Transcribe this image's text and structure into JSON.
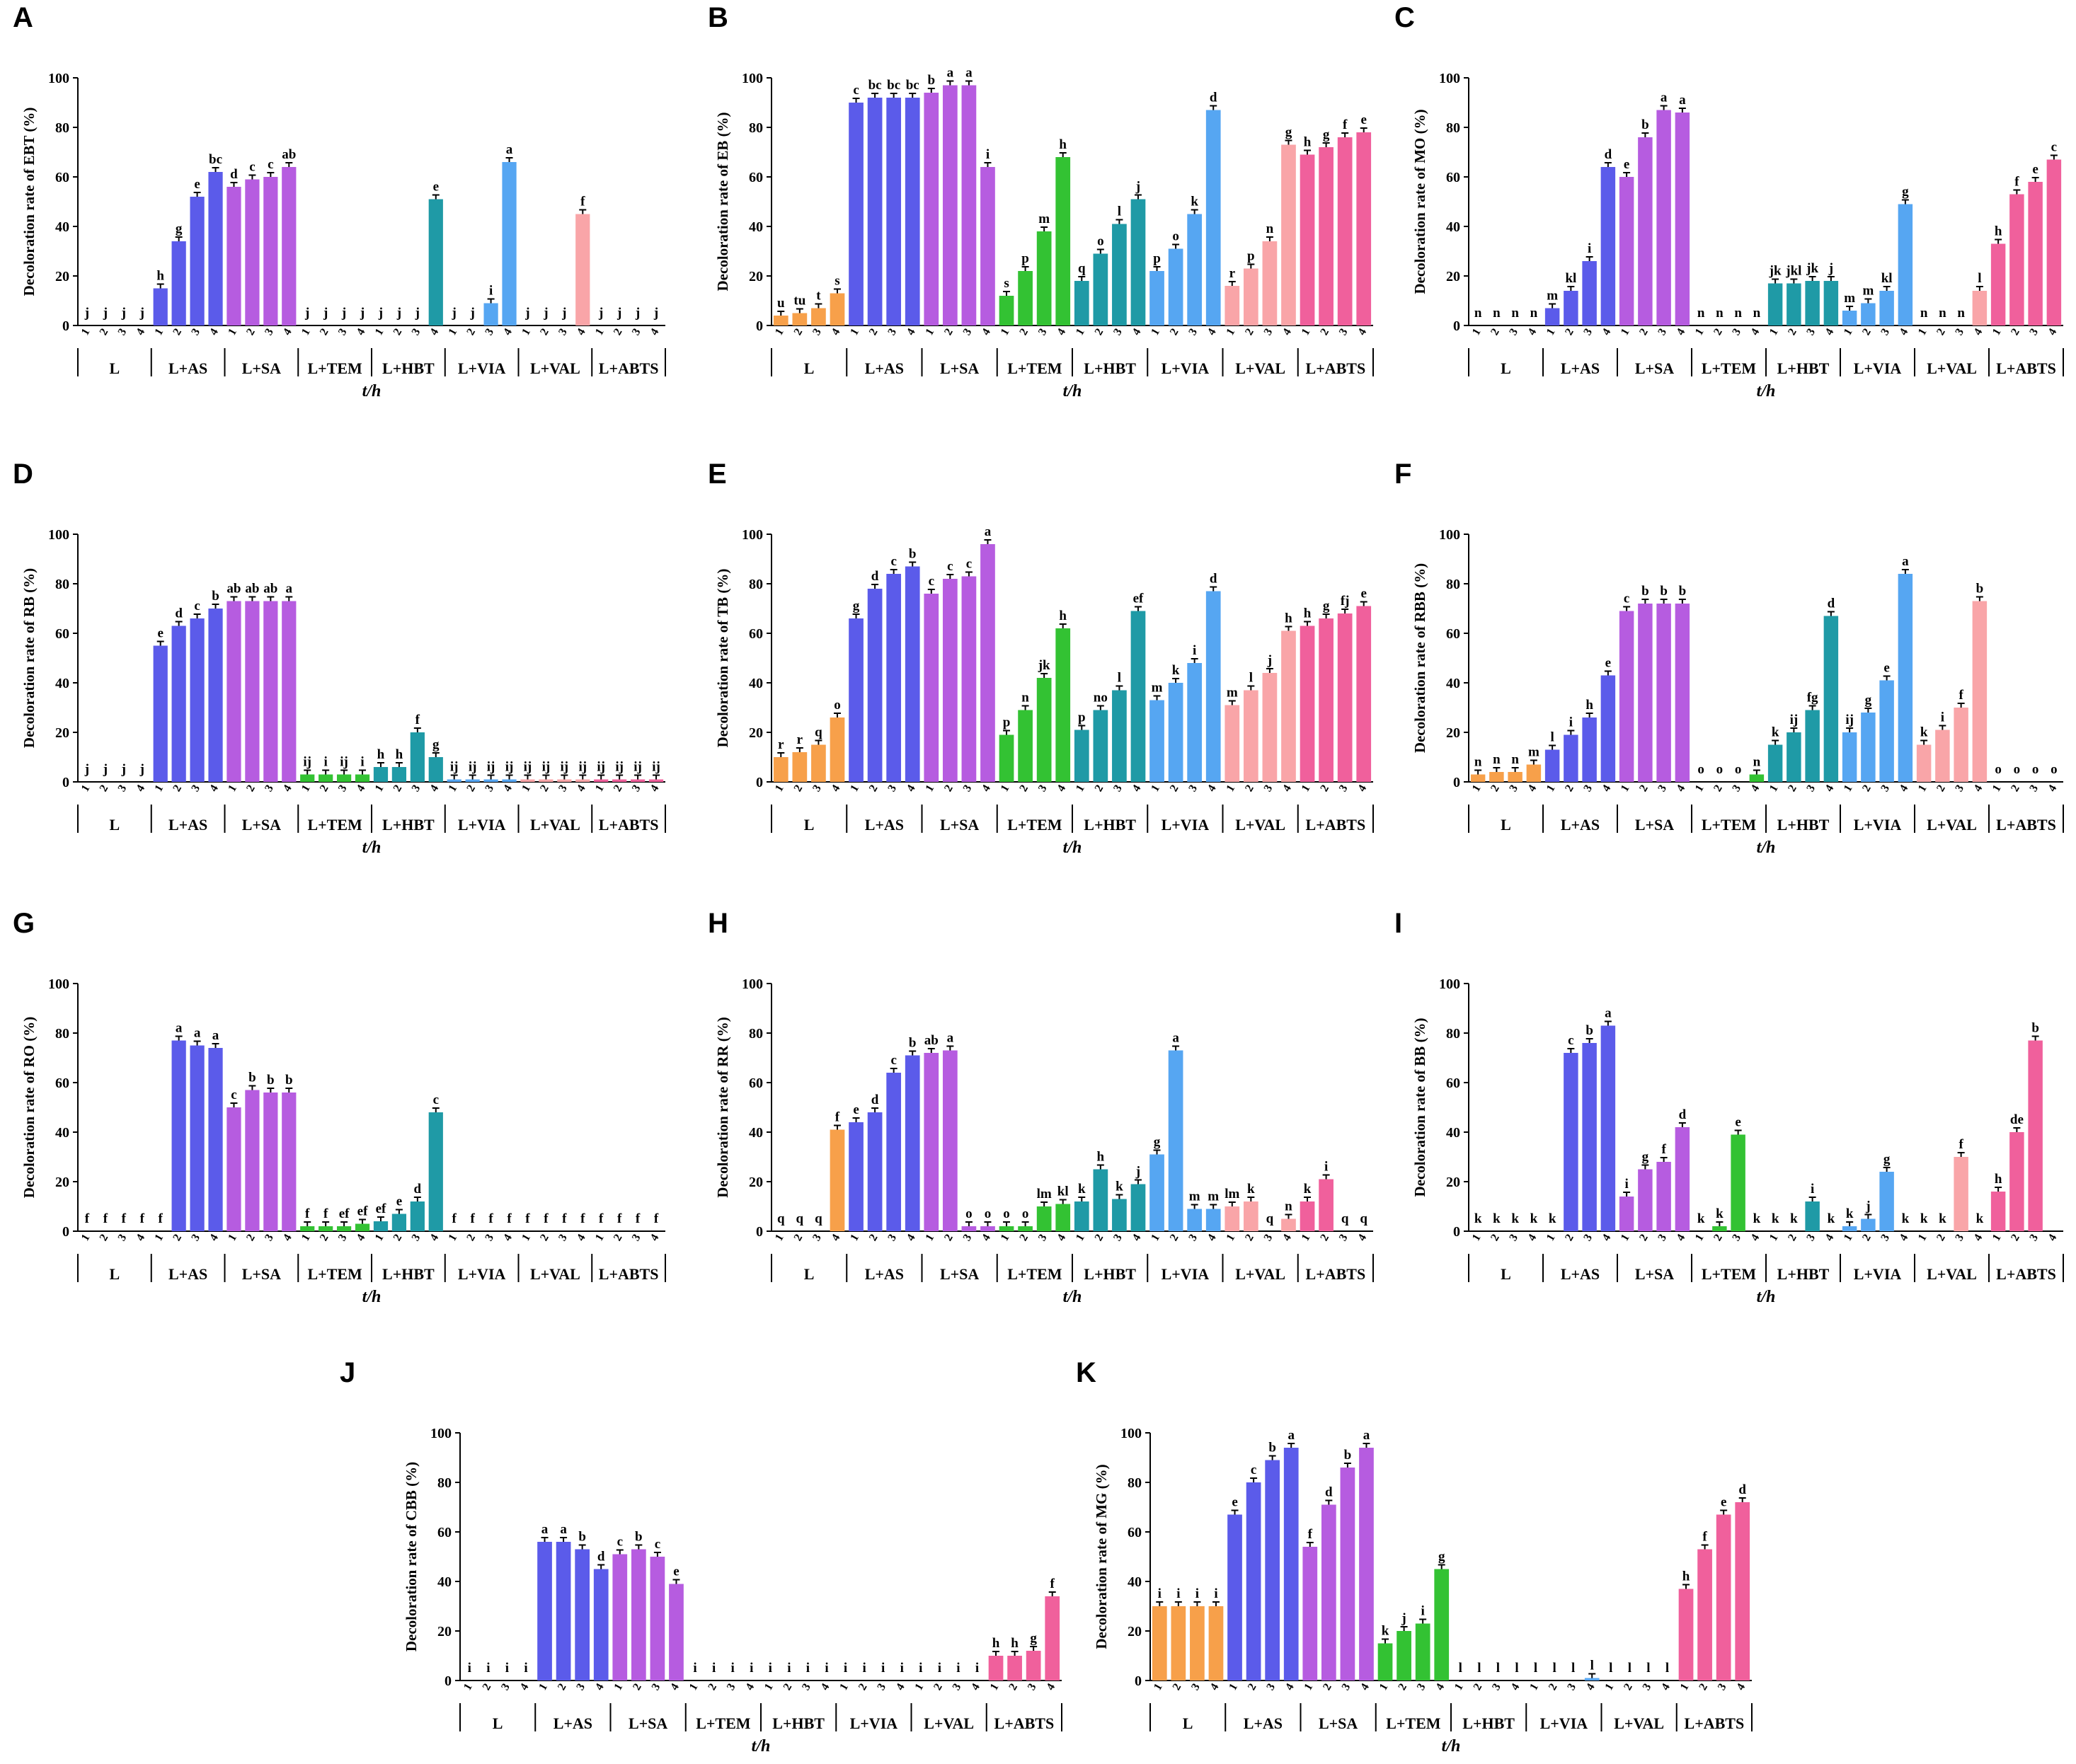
{
  "figure": {
    "x_axis_label": "t/h",
    "group_labels": [
      "L",
      "L+AS",
      "L+SA",
      "L+TEM",
      "L+HBT",
      "L+VIA",
      "L+VAL",
      "L+ABTS"
    ],
    "time_labels": [
      "1",
      "2",
      "3",
      "4"
    ],
    "colors": {
      "L": "#f7a04a",
      "L+AS": "#5b5bea",
      "L+SA": "#b65ce0",
      "L+TEM": "#33c233",
      "L+HBT": "#1f9aa6",
      "L+VIA": "#56a6f2",
      "L+VAL": "#f9a5a8",
      "L+ABTS": "#f0609c"
    }
  },
  "chart_data": [
    {
      "panel": "A",
      "type": "bar",
      "ylabel": "Decoloration rate of EBT (%)",
      "ylim": [
        0,
        100
      ],
      "yticks": [
        0,
        20,
        40,
        60,
        80,
        100
      ],
      "values": [
        [
          0,
          0,
          0,
          0
        ],
        [
          15,
          34,
          52,
          62
        ],
        [
          56,
          59,
          60,
          64
        ],
        [
          0,
          0,
          0,
          0
        ],
        [
          0,
          0,
          0,
          51
        ],
        [
          0,
          0,
          9,
          66
        ],
        [
          0,
          0,
          0,
          45
        ],
        [
          0,
          0,
          0,
          0
        ]
      ],
      "letters": [
        [
          "j",
          "j",
          "j",
          "j"
        ],
        [
          "h",
          "g",
          "e",
          "bc"
        ],
        [
          "d",
          "c",
          "c",
          "ab"
        ],
        [
          "j",
          "j",
          "j",
          "j"
        ],
        [
          "j",
          "j",
          "j",
          "e"
        ],
        [
          "j",
          "j",
          "i",
          "a"
        ],
        [
          "j",
          "j",
          "j",
          "f"
        ],
        [
          "j",
          "j",
          "j",
          "j"
        ]
      ]
    },
    {
      "panel": "B",
      "type": "bar",
      "ylabel": "Decoloration rate of EB (%)",
      "ylim": [
        0,
        100
      ],
      "yticks": [
        0,
        20,
        40,
        60,
        80,
        100
      ],
      "values": [
        [
          4,
          5,
          7,
          13
        ],
        [
          90,
          92,
          92,
          92
        ],
        [
          94,
          97,
          97,
          64
        ],
        [
          12,
          22,
          38,
          68
        ],
        [
          18,
          29,
          41,
          51
        ],
        [
          22,
          31,
          45,
          87
        ],
        [
          16,
          23,
          34,
          73
        ],
        [
          69,
          72,
          76,
          78
        ]
      ],
      "letters": [
        [
          "u",
          "tu",
          "t",
          "s"
        ],
        [
          "c",
          "bc",
          "bc",
          "bc"
        ],
        [
          "b",
          "a",
          "a",
          "i"
        ],
        [
          "s",
          "p",
          "m",
          "h"
        ],
        [
          "q",
          "o",
          "l",
          "j"
        ],
        [
          "p",
          "o",
          "k",
          "d"
        ],
        [
          "r",
          "p",
          "n",
          "g"
        ],
        [
          "h",
          "g",
          "f",
          "e"
        ]
      ]
    },
    {
      "panel": "C",
      "type": "bar",
      "ylabel": "Decoloration rate of MO (%)",
      "ylim": [
        0,
        100
      ],
      "yticks": [
        0,
        20,
        40,
        60,
        80,
        100
      ],
      "values": [
        [
          0,
          0,
          0,
          0
        ],
        [
          7,
          14,
          26,
          64
        ],
        [
          60,
          76,
          87,
          86
        ],
        [
          0,
          0,
          0,
          0
        ],
        [
          17,
          17,
          18,
          18
        ],
        [
          6,
          9,
          14,
          49
        ],
        [
          0,
          0,
          0,
          14
        ],
        [
          33,
          53,
          58,
          67
        ]
      ],
      "letters": [
        [
          "n",
          "n",
          "n",
          "n"
        ],
        [
          "m",
          "kl",
          "i",
          "d"
        ],
        [
          "e",
          "b",
          "a",
          "a"
        ],
        [
          "n",
          "n",
          "n",
          "n"
        ],
        [
          "jk",
          "jkl",
          "jk",
          "j"
        ],
        [
          "m",
          "m",
          "kl",
          "g"
        ],
        [
          "n",
          "n",
          "n",
          "l"
        ],
        [
          "h",
          "f",
          "e",
          "c"
        ]
      ]
    },
    {
      "panel": "D",
      "type": "bar",
      "ylabel": "Decoloration rate of RB (%)",
      "ylim": [
        0,
        100
      ],
      "yticks": [
        0,
        20,
        40,
        60,
        80,
        100
      ],
      "values": [
        [
          0,
          0,
          0,
          0
        ],
        [
          55,
          63,
          66,
          70
        ],
        [
          73,
          73,
          73,
          73
        ],
        [
          3,
          3,
          3,
          3
        ],
        [
          6,
          6,
          20,
          10
        ],
        [
          1,
          1,
          1,
          1
        ],
        [
          1,
          1,
          1,
          1
        ],
        [
          1,
          1,
          1,
          1
        ]
      ],
      "letters": [
        [
          "j",
          "j",
          "j",
          "j"
        ],
        [
          "e",
          "d",
          "c",
          "b"
        ],
        [
          "ab",
          "ab",
          "ab",
          "a"
        ],
        [
          "ij",
          "i",
          "ij",
          "i"
        ],
        [
          "h",
          "h",
          "f",
          "g"
        ],
        [
          "ij",
          "ij",
          "ij",
          "ij"
        ],
        [
          "ij",
          "ij",
          "ij",
          "ij"
        ],
        [
          "ij",
          "ij",
          "ij",
          "ij"
        ]
      ]
    },
    {
      "panel": "E",
      "type": "bar",
      "ylabel": "Decoloration rate of TB (%)",
      "ylim": [
        0,
        100
      ],
      "yticks": [
        0,
        20,
        40,
        60,
        80,
        100
      ],
      "values": [
        [
          10,
          12,
          15,
          26
        ],
        [
          66,
          78,
          84,
          87
        ],
        [
          76,
          82,
          83,
          96
        ],
        [
          19,
          29,
          42,
          62
        ],
        [
          21,
          29,
          37,
          69
        ],
        [
          33,
          40,
          48,
          77
        ],
        [
          31,
          37,
          44,
          61
        ],
        [
          63,
          66,
          68,
          71
        ]
      ],
      "letters": [
        [
          "r",
          "r",
          "q",
          "o"
        ],
        [
          "g",
          "d",
          "c",
          "b"
        ],
        [
          "c",
          "c",
          "c",
          "a"
        ],
        [
          "p",
          "n",
          "jk",
          "h"
        ],
        [
          "p",
          "no",
          "l",
          "ef"
        ],
        [
          "m",
          "k",
          "i",
          "d"
        ],
        [
          "m",
          "l",
          "j",
          "h"
        ],
        [
          "h",
          "g",
          "fj",
          "e"
        ]
      ]
    },
    {
      "panel": "F",
      "type": "bar",
      "ylabel": "Decoloration rate of RBB (%)",
      "ylim": [
        0,
        100
      ],
      "yticks": [
        0,
        20,
        40,
        60,
        80,
        100
      ],
      "values": [
        [
          3,
          4,
          4,
          7
        ],
        [
          13,
          19,
          26,
          43
        ],
        [
          69,
          72,
          72,
          72
        ],
        [
          0,
          0,
          0,
          3
        ],
        [
          15,
          20,
          29,
          67
        ],
        [
          20,
          28,
          41,
          84
        ],
        [
          15,
          21,
          30,
          73
        ],
        [
          0,
          0,
          0,
          0
        ]
      ],
      "letters": [
        [
          "n",
          "n",
          "n",
          "m"
        ],
        [
          "l",
          "i",
          "h",
          "e"
        ],
        [
          "c",
          "b",
          "b",
          "b"
        ],
        [
          "o",
          "o",
          "o",
          "n"
        ],
        [
          "k",
          "ij",
          "fg",
          "d"
        ],
        [
          "ij",
          "g",
          "e",
          "a"
        ],
        [
          "k",
          "i",
          "f",
          "b"
        ],
        [
          "o",
          "o",
          "o",
          "o"
        ]
      ]
    },
    {
      "panel": "G",
      "type": "bar",
      "ylabel": "Decoloration rate of RO (%)",
      "ylim": [
        0,
        100
      ],
      "yticks": [
        0,
        20,
        40,
        60,
        80,
        100
      ],
      "values": [
        [
          0,
          0,
          0,
          0
        ],
        [
          0,
          77,
          75,
          74
        ],
        [
          50,
          57,
          56,
          56
        ],
        [
          2,
          2,
          2,
          3
        ],
        [
          4,
          7,
          12,
          48
        ],
        [
          0,
          0,
          0,
          0
        ],
        [
          0,
          0,
          0,
          0
        ],
        [
          0,
          0,
          0,
          0
        ]
      ],
      "letters": [
        [
          "f",
          "f",
          "f",
          "f"
        ],
        [
          "f",
          "a",
          "a",
          "a"
        ],
        [
          "c",
          "b",
          "b",
          "b"
        ],
        [
          "f",
          "f",
          "ef",
          "ef"
        ],
        [
          "ef",
          "e",
          "d",
          "c"
        ],
        [
          "f",
          "f",
          "f",
          "f"
        ],
        [
          "f",
          "f",
          "f",
          "f"
        ],
        [
          "f",
          "f",
          "f",
          "f"
        ]
      ]
    },
    {
      "panel": "H",
      "type": "bar",
      "ylabel": "Decoloration rate of RR (%)",
      "ylim": [
        0,
        100
      ],
      "yticks": [
        0,
        20,
        40,
        60,
        80,
        100
      ],
      "values": [
        [
          0,
          0,
          0,
          41
        ],
        [
          44,
          48,
          64,
          71
        ],
        [
          72,
          73,
          2,
          2
        ],
        [
          2,
          2,
          10,
          11
        ],
        [
          12,
          25,
          13,
          19
        ],
        [
          31,
          73,
          9,
          9
        ],
        [
          10,
          12,
          0,
          5
        ],
        [
          12,
          21,
          0,
          0
        ]
      ],
      "letters": [
        [
          "q",
          "q",
          "q",
          "f"
        ],
        [
          "e",
          "d",
          "c",
          "b"
        ],
        [
          "ab",
          "a",
          "o",
          "o"
        ],
        [
          "o",
          "o",
          "lm",
          "kl"
        ],
        [
          "k",
          "h",
          "k",
          "j"
        ],
        [
          "g",
          "a",
          "m",
          "m"
        ],
        [
          "lm",
          "k",
          "q",
          "n"
        ],
        [
          "k",
          "i",
          "q",
          "q"
        ]
      ]
    },
    {
      "panel": "I",
      "type": "bar",
      "ylabel": "Decoloration rate of BB (%)",
      "ylim": [
        0,
        100
      ],
      "yticks": [
        0,
        20,
        40,
        60,
        80,
        100
      ],
      "values": [
        [
          0,
          0,
          0,
          0
        ],
        [
          0,
          72,
          76,
          83
        ],
        [
          14,
          25,
          28,
          42
        ],
        [
          0,
          2,
          39,
          0
        ],
        [
          0,
          0,
          12,
          0
        ],
        [
          2,
          5,
          24,
          0
        ],
        [
          0,
          0,
          30,
          0
        ],
        [
          16,
          40,
          77,
          0
        ]
      ],
      "letters": [
        [
          "k",
          "k",
          "k",
          "k"
        ],
        [
          "k",
          "c",
          "b",
          "a"
        ],
        [
          "i",
          "g",
          "f",
          "d"
        ],
        [
          "k",
          "k",
          "e",
          "k"
        ],
        [
          "k",
          "k",
          "i",
          "k"
        ],
        [
          "k",
          "j",
          "g",
          "k"
        ],
        [
          "k",
          "k",
          "f",
          "k"
        ],
        [
          "h",
          "de",
          "b",
          ""
        ]
      ]
    },
    {
      "panel": "J",
      "type": "bar",
      "ylabel": "Decoloration rate of CBB (%)",
      "ylim": [
        0,
        100
      ],
      "yticks": [
        0,
        20,
        40,
        60,
        80,
        100
      ],
      "values": [
        [
          0,
          0,
          0,
          0
        ],
        [
          56,
          56,
          53,
          45
        ],
        [
          51,
          53,
          50,
          39
        ],
        [
          0,
          0,
          0,
          0
        ],
        [
          0,
          0,
          0,
          0
        ],
        [
          0,
          0,
          0,
          0
        ],
        [
          0,
          0,
          0,
          0
        ],
        [
          10,
          10,
          12,
          34
        ]
      ],
      "letters": [
        [
          "i",
          "i",
          "i",
          "i"
        ],
        [
          "a",
          "a",
          "b",
          "d"
        ],
        [
          "c",
          "b",
          "c",
          "e"
        ],
        [
          "i",
          "i",
          "i",
          "i"
        ],
        [
          "i",
          "i",
          "i",
          "i"
        ],
        [
          "i",
          "i",
          "i",
          "i"
        ],
        [
          "i",
          "i",
          "i",
          "i"
        ],
        [
          "h",
          "h",
          "g",
          "f"
        ]
      ]
    },
    {
      "panel": "K",
      "type": "bar",
      "ylabel": "Decoloration rate of MG (%)",
      "ylim": [
        0,
        100
      ],
      "yticks": [
        0,
        20,
        40,
        60,
        80,
        100
      ],
      "values": [
        [
          30,
          30,
          30,
          30
        ],
        [
          67,
          80,
          89,
          94
        ],
        [
          54,
          71,
          86,
          94
        ],
        [
          15,
          20,
          23,
          45
        ],
        [
          0,
          0,
          0,
          0
        ],
        [
          0,
          0,
          0,
          1
        ],
        [
          0,
          0,
          0,
          0
        ],
        [
          37,
          53,
          67,
          72
        ]
      ],
      "letters": [
        [
          "i",
          "i",
          "i",
          "i"
        ],
        [
          "e",
          "c",
          "b",
          "a"
        ],
        [
          "f",
          "d",
          "b",
          "a"
        ],
        [
          "k",
          "j",
          "i",
          "g"
        ],
        [
          "l",
          "l",
          "l",
          "l"
        ],
        [
          "l",
          "l",
          "l",
          "l"
        ],
        [
          "l",
          "l",
          "l",
          "l"
        ],
        [
          "h",
          "f",
          "e",
          "d"
        ]
      ]
    }
  ]
}
